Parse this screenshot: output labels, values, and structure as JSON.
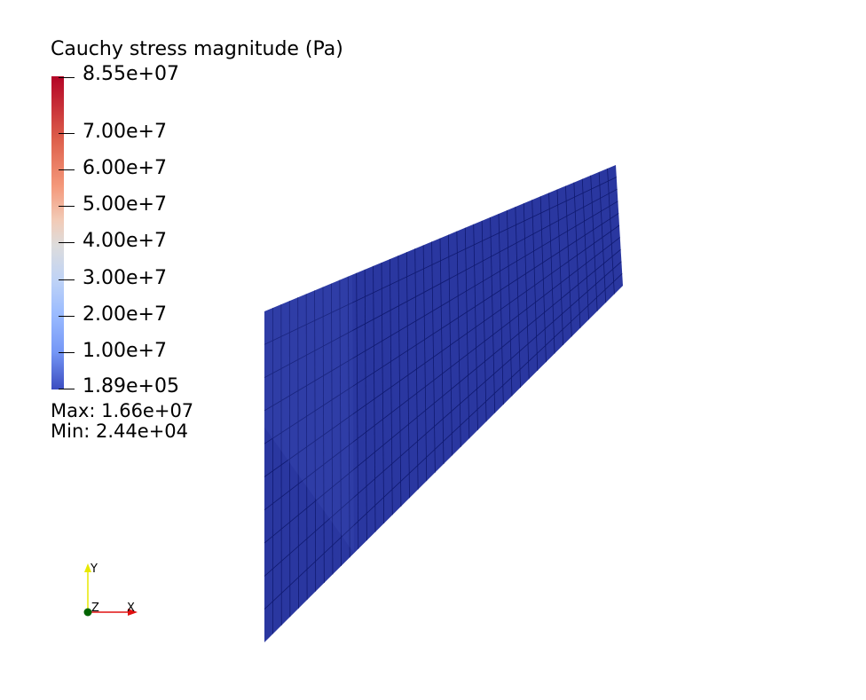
{
  "legend": {
    "title": "Cauchy stress magnitude (Pa)",
    "ticks": [
      {
        "label": "8.55e+07"
      },
      {
        "label": "7.00e+7"
      },
      {
        "label": "6.00e+7"
      },
      {
        "label": "5.00e+7"
      },
      {
        "label": "4.00e+7"
      },
      {
        "label": "3.00e+7"
      },
      {
        "label": "2.00e+7"
      },
      {
        "label": "1.00e+7"
      },
      {
        "label": "1.89e+05"
      }
    ],
    "colormap": "cool-to-warm",
    "max_color": "#b40426",
    "min_color": "#3b4cc0"
  },
  "stats": {
    "max": "Max: 1.66e+07",
    "min": "Min: 2.44e+04"
  },
  "mesh": {
    "fill_color": "#2a37a0",
    "edge_color": "#101a70"
  },
  "axes": {
    "y_label": "Y",
    "x_label": "X",
    "z_label": "Z",
    "y_color": "#e8e800",
    "x_color": "#e01010",
    "z_color": "#006400"
  }
}
